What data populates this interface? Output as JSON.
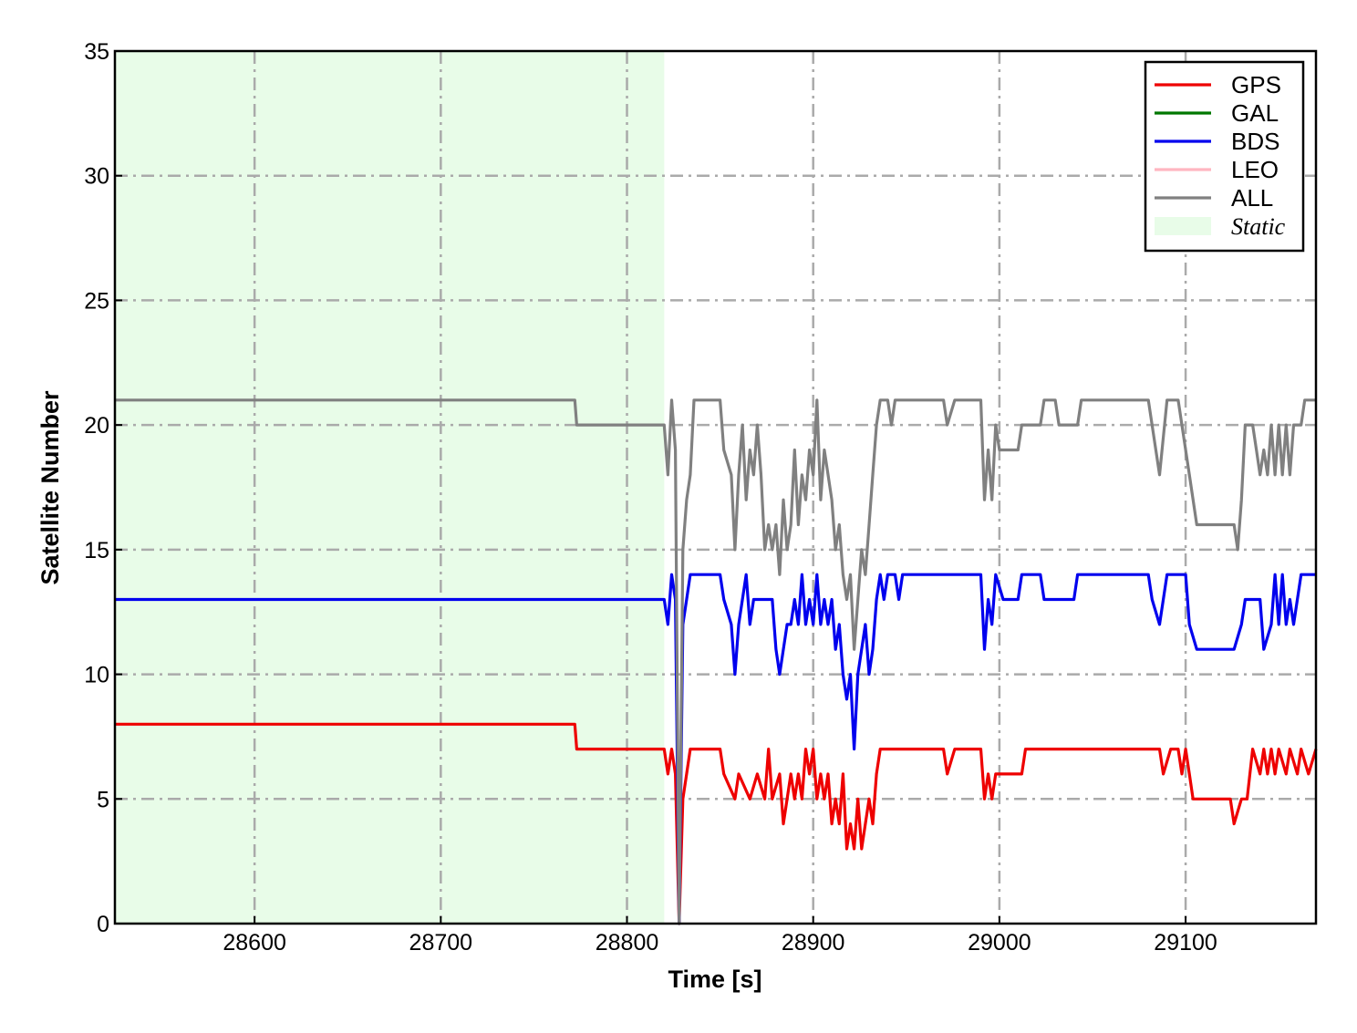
{
  "chart_data": {
    "type": "line",
    "xlabel": "Time [s]",
    "ylabel": "Satellite Number",
    "xlim": [
      28525,
      29170
    ],
    "ylim": [
      0,
      35
    ],
    "xticks": [
      28600,
      28700,
      28800,
      28900,
      29000,
      29100
    ],
    "xtick_labels": [
      "28600",
      "28700",
      "28800",
      "28900",
      "29000",
      "29100"
    ],
    "yticks": [
      0,
      5,
      10,
      15,
      20,
      25,
      30,
      35
    ],
    "ytick_labels": [
      "0",
      "5",
      "10",
      "15",
      "20",
      "25",
      "30",
      "35"
    ],
    "grid": true,
    "legend_position": "top-right",
    "static_region": {
      "label": "Static",
      "x_start": 28525,
      "x_end": 28820,
      "color": "#e8fce8"
    },
    "series": [
      {
        "name": "GPS",
        "color": "#ee0000",
        "points": [
          [
            28525,
            8
          ],
          [
            28772,
            8
          ],
          [
            28773,
            7
          ],
          [
            28820,
            7
          ],
          [
            28822,
            6
          ],
          [
            28824,
            7
          ],
          [
            28826,
            6
          ],
          [
            28828,
            0
          ],
          [
            28830,
            5
          ],
          [
            28832,
            6
          ],
          [
            28834,
            7
          ],
          [
            28850,
            7
          ],
          [
            28852,
            6
          ],
          [
            28858,
            5
          ],
          [
            28860,
            6
          ],
          [
            28866,
            5
          ],
          [
            28870,
            6
          ],
          [
            28874,
            5
          ],
          [
            28876,
            7
          ],
          [
            28878,
            5
          ],
          [
            28882,
            6
          ],
          [
            28884,
            4
          ],
          [
            28886,
            5
          ],
          [
            28888,
            6
          ],
          [
            28890,
            5
          ],
          [
            28892,
            6
          ],
          [
            28894,
            5
          ],
          [
            28896,
            7
          ],
          [
            28898,
            6
          ],
          [
            28900,
            7
          ],
          [
            28902,
            5
          ],
          [
            28904,
            6
          ],
          [
            28906,
            5
          ],
          [
            28908,
            6
          ],
          [
            28910,
            4
          ],
          [
            28912,
            5
          ],
          [
            28914,
            4
          ],
          [
            28916,
            6
          ],
          [
            28918,
            3
          ],
          [
            28920,
            4
          ],
          [
            28922,
            3
          ],
          [
            28924,
            5
          ],
          [
            28926,
            3
          ],
          [
            28928,
            4
          ],
          [
            28930,
            5
          ],
          [
            28932,
            4
          ],
          [
            28934,
            6
          ],
          [
            28936,
            7
          ],
          [
            28970,
            7
          ],
          [
            28972,
            6
          ],
          [
            28976,
            7
          ],
          [
            28990,
            7
          ],
          [
            28992,
            5
          ],
          [
            28994,
            6
          ],
          [
            28996,
            5
          ],
          [
            28998,
            6
          ],
          [
            29012,
            6
          ],
          [
            29014,
            7
          ],
          [
            29086,
            7
          ],
          [
            29088,
            6
          ],
          [
            29092,
            7
          ],
          [
            29096,
            7
          ],
          [
            29098,
            6
          ],
          [
            29100,
            7
          ],
          [
            29102,
            6
          ],
          [
            29104,
            5
          ],
          [
            29124,
            5
          ],
          [
            29126,
            4
          ],
          [
            29130,
            5
          ],
          [
            29133,
            5
          ],
          [
            29136,
            7
          ],
          [
            29140,
            6
          ],
          [
            29142,
            7
          ],
          [
            29144,
            6
          ],
          [
            29146,
            7
          ],
          [
            29148,
            6
          ],
          [
            29150,
            7
          ],
          [
            29154,
            6
          ],
          [
            29156,
            7
          ],
          [
            29160,
            6
          ],
          [
            29162,
            7
          ],
          [
            29166,
            6
          ],
          [
            29170,
            7
          ]
        ]
      },
      {
        "name": "GAL",
        "color": "#007700",
        "points": []
      },
      {
        "name": "BDS",
        "color": "#0000ee",
        "points": [
          [
            28525,
            13
          ],
          [
            28820,
            13
          ],
          [
            28822,
            12
          ],
          [
            28824,
            14
          ],
          [
            28826,
            13
          ],
          [
            28828,
            0
          ],
          [
            28830,
            12
          ],
          [
            28832,
            13
          ],
          [
            28834,
            14
          ],
          [
            28850,
            14
          ],
          [
            28852,
            13
          ],
          [
            28856,
            12
          ],
          [
            28858,
            10
          ],
          [
            28860,
            12
          ],
          [
            28862,
            13
          ],
          [
            28864,
            14
          ],
          [
            28866,
            12
          ],
          [
            28868,
            13
          ],
          [
            28878,
            13
          ],
          [
            28880,
            11
          ],
          [
            28882,
            10
          ],
          [
            28884,
            11
          ],
          [
            28886,
            12
          ],
          [
            28888,
            12
          ],
          [
            28890,
            13
          ],
          [
            28892,
            12
          ],
          [
            28894,
            14
          ],
          [
            28896,
            12
          ],
          [
            28898,
            13
          ],
          [
            28900,
            12
          ],
          [
            28902,
            14
          ],
          [
            28904,
            12
          ],
          [
            28906,
            13
          ],
          [
            28908,
            12
          ],
          [
            28910,
            13
          ],
          [
            28912,
            11
          ],
          [
            28914,
            12
          ],
          [
            28916,
            10
          ],
          [
            28918,
            9
          ],
          [
            28920,
            10
          ],
          [
            28922,
            7
          ],
          [
            28924,
            10
          ],
          [
            28926,
            11
          ],
          [
            28928,
            12
          ],
          [
            28930,
            10
          ],
          [
            28932,
            11
          ],
          [
            28934,
            13
          ],
          [
            28936,
            14
          ],
          [
            28938,
            13
          ],
          [
            28940,
            14
          ],
          [
            28944,
            14
          ],
          [
            28946,
            13
          ],
          [
            28948,
            14
          ],
          [
            28990,
            14
          ],
          [
            28992,
            11
          ],
          [
            28994,
            13
          ],
          [
            28996,
            12
          ],
          [
            28998,
            14
          ],
          [
            29002,
            13
          ],
          [
            29010,
            13
          ],
          [
            29012,
            14
          ],
          [
            29022,
            14
          ],
          [
            29024,
            13
          ],
          [
            29040,
            13
          ],
          [
            29042,
            14
          ],
          [
            29080,
            14
          ],
          [
            29082,
            13
          ],
          [
            29086,
            12
          ],
          [
            29090,
            14
          ],
          [
            29100,
            14
          ],
          [
            29102,
            12
          ],
          [
            29106,
            11
          ],
          [
            29126,
            11
          ],
          [
            29130,
            12
          ],
          [
            29132,
            13
          ],
          [
            29140,
            13
          ],
          [
            29142,
            11
          ],
          [
            29146,
            12
          ],
          [
            29148,
            14
          ],
          [
            29150,
            12
          ],
          [
            29152,
            14
          ],
          [
            29154,
            12
          ],
          [
            29156,
            13
          ],
          [
            29158,
            12
          ],
          [
            29160,
            13
          ],
          [
            29162,
            14
          ],
          [
            29170,
            14
          ]
        ]
      },
      {
        "name": "LEO",
        "color": "#ffb6c1",
        "points": []
      },
      {
        "name": "ALL",
        "color": "#808080",
        "points": [
          [
            28525,
            21
          ],
          [
            28772,
            21
          ],
          [
            28773,
            20
          ],
          [
            28820,
            20
          ],
          [
            28822,
            18
          ],
          [
            28824,
            21
          ],
          [
            28826,
            19
          ],
          [
            28828,
            0
          ],
          [
            28830,
            15
          ],
          [
            28832,
            17
          ],
          [
            28834,
            18
          ],
          [
            28836,
            21
          ],
          [
            28850,
            21
          ],
          [
            28852,
            19
          ],
          [
            28856,
            18
          ],
          [
            28858,
            15
          ],
          [
            28860,
            18
          ],
          [
            28862,
            20
          ],
          [
            28864,
            17
          ],
          [
            28866,
            19
          ],
          [
            28868,
            18
          ],
          [
            28870,
            20
          ],
          [
            28872,
            18
          ],
          [
            28874,
            15
          ],
          [
            28876,
            16
          ],
          [
            28878,
            15
          ],
          [
            28880,
            16
          ],
          [
            28882,
            14
          ],
          [
            28884,
            17
          ],
          [
            28886,
            15
          ],
          [
            28888,
            16
          ],
          [
            28890,
            19
          ],
          [
            28892,
            16
          ],
          [
            28894,
            18
          ],
          [
            28896,
            17
          ],
          [
            28898,
            19
          ],
          [
            28900,
            18
          ],
          [
            28902,
            21
          ],
          [
            28904,
            17
          ],
          [
            28906,
            19
          ],
          [
            28908,
            18
          ],
          [
            28910,
            17
          ],
          [
            28912,
            15
          ],
          [
            28914,
            16
          ],
          [
            28916,
            14
          ],
          [
            28918,
            13
          ],
          [
            28920,
            14
          ],
          [
            28922,
            11
          ],
          [
            28924,
            13
          ],
          [
            28926,
            15
          ],
          [
            28928,
            14
          ],
          [
            28930,
            16
          ],
          [
            28932,
            18
          ],
          [
            28934,
            20
          ],
          [
            28936,
            21
          ],
          [
            28940,
            21
          ],
          [
            28942,
            20
          ],
          [
            28944,
            21
          ],
          [
            28970,
            21
          ],
          [
            28972,
            20
          ],
          [
            28976,
            21
          ],
          [
            28990,
            21
          ],
          [
            28992,
            17
          ],
          [
            28994,
            19
          ],
          [
            28996,
            17
          ],
          [
            28998,
            20
          ],
          [
            29000,
            19
          ],
          [
            29010,
            19
          ],
          [
            29012,
            20
          ],
          [
            29022,
            20
          ],
          [
            29024,
            21
          ],
          [
            29030,
            21
          ],
          [
            29032,
            20
          ],
          [
            29042,
            20
          ],
          [
            29044,
            21
          ],
          [
            29080,
            21
          ],
          [
            29082,
            20
          ],
          [
            29086,
            18
          ],
          [
            29090,
            21
          ],
          [
            29096,
            21
          ],
          [
            29098,
            20
          ],
          [
            29100,
            19
          ],
          [
            29102,
            18
          ],
          [
            29106,
            16
          ],
          [
            29126,
            16
          ],
          [
            29128,
            15
          ],
          [
            29130,
            17
          ],
          [
            29132,
            20
          ],
          [
            29136,
            20
          ],
          [
            29138,
            19
          ],
          [
            29140,
            18
          ],
          [
            29142,
            19
          ],
          [
            29144,
            18
          ],
          [
            29146,
            20
          ],
          [
            29148,
            18
          ],
          [
            29150,
            20
          ],
          [
            29152,
            18
          ],
          [
            29154,
            20
          ],
          [
            29156,
            18
          ],
          [
            29158,
            20
          ],
          [
            29162,
            20
          ],
          [
            29164,
            21
          ],
          [
            29170,
            21
          ]
        ]
      }
    ]
  }
}
